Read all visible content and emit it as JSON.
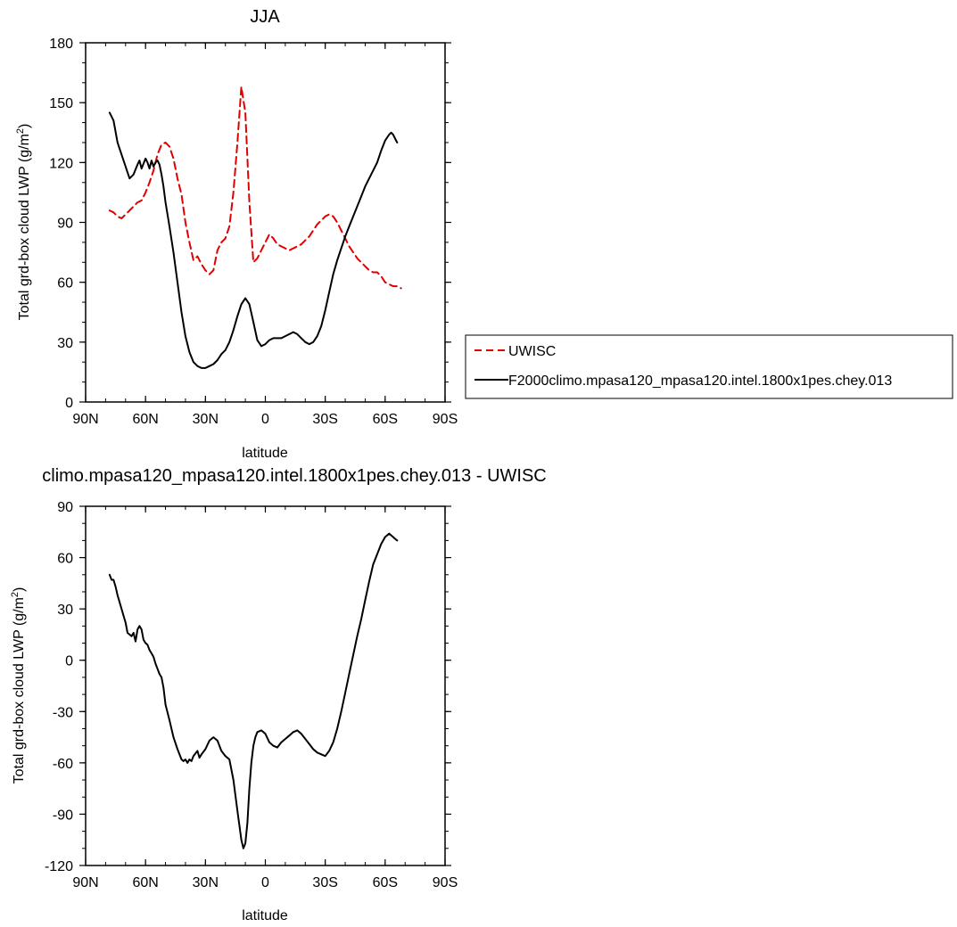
{
  "chart_data": [
    {
      "type": "line",
      "title": "JJA",
      "xlabel": "latitude",
      "ylabel": "Total grd-box cloud LWP (g/m",
      "ylabel_sup": "2",
      "ylabel_close": ")",
      "xlim": [
        90,
        -90
      ],
      "ylim": [
        0,
        180
      ],
      "xticks": [
        {
          "value": 90,
          "label": "90N"
        },
        {
          "value": 60,
          "label": "60N"
        },
        {
          "value": 30,
          "label": "30N"
        },
        {
          "value": 0,
          "label": "0"
        },
        {
          "value": -30,
          "label": "30S"
        },
        {
          "value": -60,
          "label": "60S"
        },
        {
          "value": -90,
          "label": "90S"
        }
      ],
      "yticks": [
        {
          "value": 0,
          "label": "0"
        },
        {
          "value": 30,
          "label": "30"
        },
        {
          "value": 60,
          "label": "60"
        },
        {
          "value": 90,
          "label": "90"
        },
        {
          "value": 120,
          "label": "120"
        },
        {
          "value": 150,
          "label": "150"
        },
        {
          "value": 180,
          "label": "180"
        }
      ],
      "legend": "right",
      "series": [
        {
          "name": "UWISC",
          "color": "#e00000",
          "dash": true,
          "x": [
            78,
            76,
            74,
            72,
            70,
            68,
            66,
            64,
            62,
            60,
            58,
            56,
            54,
            52,
            50,
            48,
            46,
            44,
            42,
            40,
            38,
            36,
            34,
            32,
            30,
            28,
            26,
            24,
            22,
            20,
            18,
            16,
            14,
            12,
            10,
            8,
            6,
            4,
            2,
            0,
            -2,
            -4,
            -6,
            -8,
            -10,
            -12,
            -14,
            -16,
            -18,
            -20,
            -22,
            -24,
            -26,
            -28,
            -30,
            -32,
            -34,
            -36,
            -38,
            -40,
            -42,
            -44,
            -46,
            -48,
            -50,
            -52,
            -54,
            -56,
            -58,
            -60,
            -62,
            -64,
            -66,
            -68
          ],
          "y": [
            96,
            95,
            93,
            92,
            94,
            96,
            98,
            100,
            101,
            105,
            110,
            116,
            124,
            129,
            130,
            128,
            122,
            112,
            104,
            90,
            80,
            71,
            73,
            69,
            66,
            64,
            66,
            76,
            80,
            82,
            88,
            105,
            130,
            158,
            145,
            100,
            70,
            72,
            76,
            80,
            84,
            82,
            79,
            78,
            77,
            76,
            77,
            78,
            79,
            81,
            83,
            86,
            89,
            91,
            93,
            94,
            93,
            90,
            86,
            82,
            78,
            75,
            72,
            70,
            68,
            66,
            65,
            65,
            63,
            60,
            59,
            58,
            58,
            57
          ]
        },
        {
          "name": "F2000climo.mpasa120_mpasa120.intel.1800x1pes.chey.013",
          "color": "#000000",
          "dash": false,
          "x": [
            78,
            77,
            76,
            74,
            72,
            70,
            69,
            68,
            66,
            64,
            63,
            62,
            60,
            59,
            58,
            57,
            56,
            55,
            54,
            53,
            52,
            51,
            50,
            48,
            46,
            44,
            42,
            40,
            38,
            36,
            34,
            32,
            30,
            28,
            26,
            24,
            22,
            20,
            18,
            16,
            14,
            12,
            10,
            8,
            6,
            4,
            2,
            0,
            -2,
            -4,
            -6,
            -8,
            -10,
            -12,
            -14,
            -16,
            -18,
            -20,
            -22,
            -24,
            -26,
            -28,
            -30,
            -32,
            -34,
            -36,
            -38,
            -40,
            -42,
            -44,
            -46,
            -48,
            -50,
            -52,
            -54,
            -56,
            -58,
            -60,
            -62,
            -63,
            -64,
            -65,
            -66
          ],
          "y": [
            145,
            143,
            141,
            130,
            124,
            118,
            115,
            112,
            114,
            119,
            121,
            117,
            122,
            120,
            117,
            121,
            118,
            120,
            121,
            119,
            114,
            108,
            100,
            88,
            75,
            60,
            45,
            33,
            25,
            20,
            18,
            17,
            17,
            18,
            19,
            21,
            24,
            26,
            30,
            36,
            43,
            49,
            52,
            49,
            40,
            31,
            28,
            29,
            31,
            32,
            32,
            32,
            33,
            34,
            35,
            34,
            32,
            30,
            29,
            30,
            33,
            38,
            46,
            55,
            64,
            71,
            77,
            83,
            88,
            93,
            98,
            103,
            108,
            112,
            116,
            120,
            126,
            131,
            134,
            135,
            134,
            132,
            130
          ]
        }
      ]
    },
    {
      "type": "line",
      "title": "climo.mpasa120_mpasa120.intel.1800x1pes.chey.013 - UWISC",
      "xlabel": "latitude",
      "ylabel": "Total grd-box cloud LWP (g/m",
      "ylabel_sup": "2",
      "ylabel_close": ")",
      "xlim": [
        90,
        -90
      ],
      "ylim": [
        -120,
        90
      ],
      "xticks": [
        {
          "value": 90,
          "label": "90N"
        },
        {
          "value": 60,
          "label": "60N"
        },
        {
          "value": 30,
          "label": "30N"
        },
        {
          "value": 0,
          "label": "0"
        },
        {
          "value": -30,
          "label": "30S"
        },
        {
          "value": -60,
          "label": "60S"
        },
        {
          "value": -90,
          "label": "90S"
        }
      ],
      "yticks": [
        {
          "value": -120,
          "label": "-120"
        },
        {
          "value": -90,
          "label": "-90"
        },
        {
          "value": -60,
          "label": "-60"
        },
        {
          "value": -30,
          "label": "-30"
        },
        {
          "value": 0,
          "label": "0"
        },
        {
          "value": 30,
          "label": "30"
        },
        {
          "value": 60,
          "label": "60"
        },
        {
          "value": 90,
          "label": "90"
        }
      ],
      "series": [
        {
          "color": "#000000",
          "dash": false,
          "x": [
            78,
            77,
            76,
            75,
            74,
            72,
            71,
            70,
            69,
            68,
            67,
            66,
            65,
            64,
            63,
            62,
            61,
            60,
            59,
            58,
            57,
            56,
            55,
            54,
            53,
            52,
            51,
            50,
            48,
            46,
            44,
            42,
            41,
            40,
            39,
            38,
            37,
            36,
            34,
            33,
            32,
            30,
            28,
            26,
            24,
            22,
            20,
            18,
            16,
            14,
            12,
            11,
            10,
            9,
            8,
            7,
            6,
            5,
            4,
            2,
            0,
            -2,
            -4,
            -6,
            -8,
            -10,
            -12,
            -14,
            -16,
            -18,
            -20,
            -22,
            -24,
            -26,
            -28,
            -30,
            -32,
            -34,
            -36,
            -38,
            -40,
            -42,
            -44,
            -46,
            -48,
            -50,
            -52,
            -54,
            -56,
            -58,
            -60,
            -62,
            -63,
            -64,
            -65,
            -66
          ],
          "y": [
            50,
            47,
            47,
            43,
            38,
            30,
            26,
            22,
            16,
            15,
            14,
            16,
            11,
            18,
            20,
            18,
            12,
            10,
            9,
            6,
            4,
            2,
            -2,
            -5,
            -8,
            -10,
            -16,
            -26,
            -35,
            -45,
            -52,
            -58,
            -59,
            -58,
            -60,
            -58,
            -59,
            -56,
            -53,
            -57,
            -55,
            -52,
            -47,
            -45,
            -47,
            -53,
            -56,
            -58,
            -70,
            -88,
            -105,
            -110,
            -107,
            -95,
            -75,
            -60,
            -50,
            -45,
            -42,
            -41,
            -43,
            -48,
            -50,
            -51,
            -48,
            -46,
            -44,
            -42,
            -41,
            -43,
            -46,
            -49,
            -52,
            -54,
            -55,
            -56,
            -53,
            -48,
            -40,
            -30,
            -19,
            -8,
            3,
            14,
            24,
            35,
            46,
            56,
            62,
            68,
            72,
            74,
            73,
            72,
            71,
            70
          ]
        }
      ]
    }
  ]
}
